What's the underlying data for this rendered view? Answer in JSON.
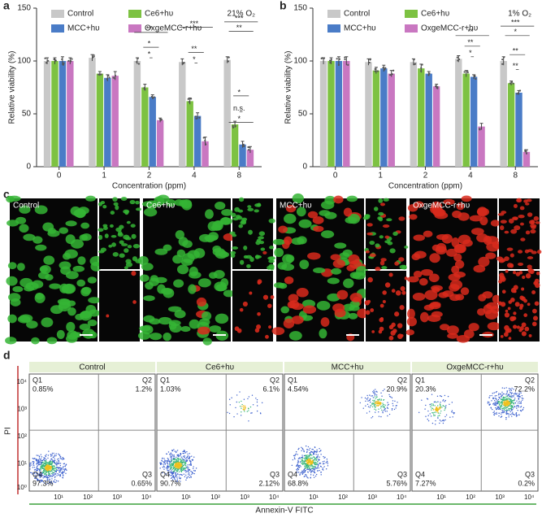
{
  "chart_data": [
    {
      "type": "bar",
      "panel": "a",
      "note": "21% O₂",
      "categories": [
        "0",
        "1",
        "2",
        "4",
        "8"
      ],
      "x_label": "Concentration (ppm)",
      "y_label": "Relative viability (%)",
      "series": [
        {
          "name": "Control",
          "color": "#c8c8c8",
          "values": [
            100,
            103,
            100,
            99,
            101
          ],
          "errors": [
            3,
            3,
            3,
            3,
            3
          ]
        },
        {
          "name": "Ce6+hυ",
          "color": "#7dc242",
          "values": [
            100,
            88,
            75,
            62,
            40
          ],
          "errors": [
            3,
            2,
            3,
            3,
            3
          ]
        },
        {
          "name": "MCC+hυ",
          "color": "#4a7cc7",
          "values": [
            100,
            84,
            66,
            48,
            21
          ],
          "errors": [
            4,
            3,
            2,
            3,
            3
          ]
        },
        {
          "name": "OxgeMCC-r+hυ",
          "color": "#c977c1",
          "values": [
            100,
            86,
            44,
            24,
            16
          ],
          "errors": [
            3,
            4,
            2,
            4,
            3
          ]
        }
      ],
      "ylim": [
        0,
        150
      ],
      "yticks": [
        0,
        50,
        100,
        150
      ],
      "annotations": [
        "**",
        "*",
        "*",
        "***",
        "**",
        "*",
        "***",
        "**",
        "*",
        "n.s.",
        "*"
      ]
    },
    {
      "type": "bar",
      "panel": "b",
      "note": "1% O₂",
      "categories": [
        "0",
        "1",
        "2",
        "4",
        "8"
      ],
      "x_label": "Concentration (ppm)",
      "y_label": "Relative viability (%)",
      "series": [
        {
          "name": "Control",
          "color": "#c8c8c8",
          "values": [
            100,
            99,
            99,
            102,
            100
          ],
          "errors": [
            3,
            3,
            3,
            3,
            4
          ]
        },
        {
          "name": "Ce6+hυ",
          "color": "#7dc242",
          "values": [
            100,
            91,
            93,
            88,
            79
          ],
          "errors": [
            3,
            3,
            4,
            3,
            2
          ]
        },
        {
          "name": "MCC+hυ",
          "color": "#4a7cc7",
          "values": [
            100,
            93,
            88,
            85,
            70
          ],
          "errors": [
            4,
            3,
            2,
            2,
            2
          ]
        },
        {
          "name": "OxgeMCC-r+hυ",
          "color": "#c977c1",
          "values": [
            100,
            88,
            76,
            38,
            14
          ],
          "errors": [
            4,
            3,
            2,
            3,
            2
          ]
        }
      ],
      "ylim": [
        0,
        150
      ],
      "yticks": [
        0,
        50,
        100,
        150
      ],
      "annotations": [
        "**",
        "**",
        "*",
        "***",
        "*",
        "**",
        "**"
      ]
    }
  ],
  "panel_c": {
    "label": "c",
    "images": [
      "Control",
      "Ce6+hυ",
      "MCC+hυ",
      "OxgeMCC-r+hυ"
    ]
  },
  "panel_d": {
    "label": "d",
    "y_label": "PI",
    "x_label": "Annexin-V FITC",
    "ticks": [
      "10⁰",
      "10¹",
      "10²",
      "10³",
      "10⁴"
    ],
    "plots": [
      {
        "title": "Control",
        "quadrants": [
          "Q1",
          "Q2",
          "Q3",
          "Q4"
        ],
        "percents": [
          "0.85%",
          "1.2%",
          "0.65%",
          "97.3%"
        ]
      },
      {
        "title": "Ce6+hυ",
        "quadrants": [
          "Q1",
          "Q2",
          "Q3",
          "Q4"
        ],
        "percents": [
          "1.03%",
          "6.1%",
          "2.12%",
          "90.7%"
        ]
      },
      {
        "title": "MCC+hυ",
        "quadrants": [
          "Q1",
          "Q2",
          "Q3",
          "Q4"
        ],
        "percents": [
          "4.54%",
          "20.9%",
          "5.76%",
          "68.8%"
        ]
      },
      {
        "title": "OxgeMCC-r+hυ",
        "quadrants": [
          "Q1",
          "Q2",
          "Q3",
          "Q4"
        ],
        "percents": [
          "20.3%",
          "72.2%",
          "0.2%",
          "7.27%"
        ]
      }
    ]
  }
}
